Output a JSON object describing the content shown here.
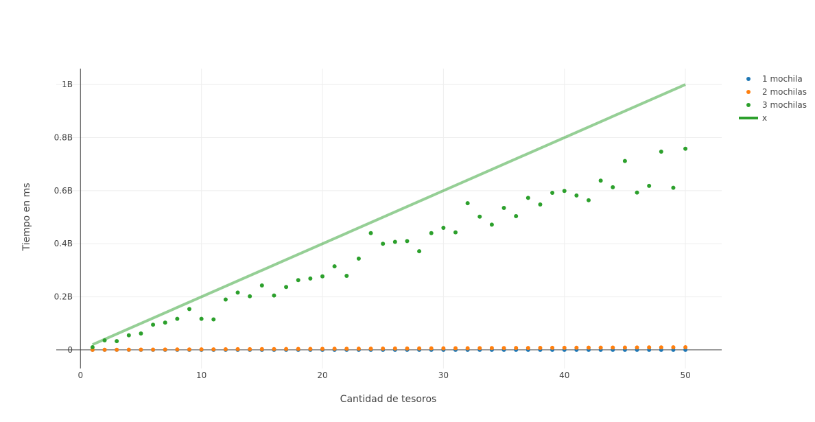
{
  "chart_data": {
    "type": "scatter",
    "title": "",
    "xlabel": "Cantidad de tesoros",
    "ylabel": "Tiempo en ms",
    "xlim": [
      -2,
      53
    ],
    "ylim": [
      -70000000,
      1060000000
    ],
    "x_ticks": [
      0,
      10,
      20,
      30,
      40,
      50
    ],
    "y_ticks": [
      0,
      200000000,
      400000000,
      600000000,
      800000000,
      1000000000
    ],
    "x_tick_labels": [
      "0",
      "10",
      "20",
      "30",
      "40",
      "50"
    ],
    "y_tick_labels": [
      "0",
      "0.2B",
      "0.4B",
      "0.6B",
      "0.8B",
      "1B"
    ],
    "grid": true,
    "legend_position": "top-right",
    "x": [
      1,
      2,
      3,
      4,
      5,
      6,
      7,
      8,
      9,
      10,
      11,
      12,
      13,
      14,
      15,
      16,
      17,
      18,
      19,
      20,
      21,
      22,
      23,
      24,
      25,
      26,
      27,
      28,
      29,
      30,
      31,
      32,
      33,
      34,
      35,
      36,
      37,
      38,
      39,
      40,
      41,
      42,
      43,
      44,
      45,
      46,
      47,
      48,
      49,
      50
    ],
    "series": [
      {
        "name": "1 mochila",
        "type": "scatter",
        "color": "#1f77b4",
        "values": [
          0,
          0,
          0,
          0,
          0,
          0,
          0,
          0,
          0,
          0,
          0,
          0,
          0,
          0,
          0,
          0,
          0,
          0,
          0,
          0,
          0,
          0,
          0,
          0,
          0,
          0,
          0,
          0,
          0,
          0,
          0,
          0,
          0,
          0,
          0,
          0,
          0,
          0,
          0,
          0,
          0,
          0,
          0,
          0,
          0,
          0,
          0,
          0,
          0,
          0
        ]
      },
      {
        "name": "2 mochilas",
        "type": "scatter",
        "color": "#ff7f0e",
        "values": [
          200000,
          400000,
          600000,
          800000,
          1000000,
          1200000,
          1400000,
          1600000,
          1800000,
          2000000,
          2200000,
          2400000,
          2600000,
          2800000,
          3000000,
          3200000,
          3400000,
          3600000,
          3800000,
          4000000,
          4200000,
          4400000,
          4600000,
          4800000,
          5000000,
          5200000,
          5400000,
          5600000,
          5800000,
          6000000,
          6200000,
          6400000,
          6600000,
          6800000,
          7000000,
          7200000,
          7400000,
          7600000,
          7800000,
          8000000,
          8200000,
          8400000,
          8600000,
          8800000,
          9000000,
          9200000,
          9400000,
          9600000,
          9800000,
          10000000
        ]
      },
      {
        "name": "3 mochilas",
        "type": "scatter",
        "color": "#2ca02c",
        "values": [
          10000000,
          36000000,
          33000000,
          55000000,
          62000000,
          95000000,
          103000000,
          117000000,
          154000000,
          117000000,
          115000000,
          190000000,
          216000000,
          202000000,
          243000000,
          205000000,
          237000000,
          263000000,
          269000000,
          277000000,
          315000000,
          279000000,
          344000000,
          440000000,
          400000000,
          407000000,
          410000000,
          372000000,
          440000000,
          460000000,
          443000000,
          553000000,
          502000000,
          472000000,
          535000000,
          504000000,
          573000000,
          548000000,
          592000000,
          599000000,
          582000000,
          564000000,
          638000000,
          613000000,
          712000000,
          593000000,
          618000000,
          747000000,
          611000000,
          758000000
        ]
      },
      {
        "name": "x",
        "type": "line",
        "color": "#2ca02c",
        "opacity": 0.5,
        "points": [
          [
            1,
            20000000
          ],
          [
            50,
            1000000000
          ]
        ]
      }
    ]
  }
}
